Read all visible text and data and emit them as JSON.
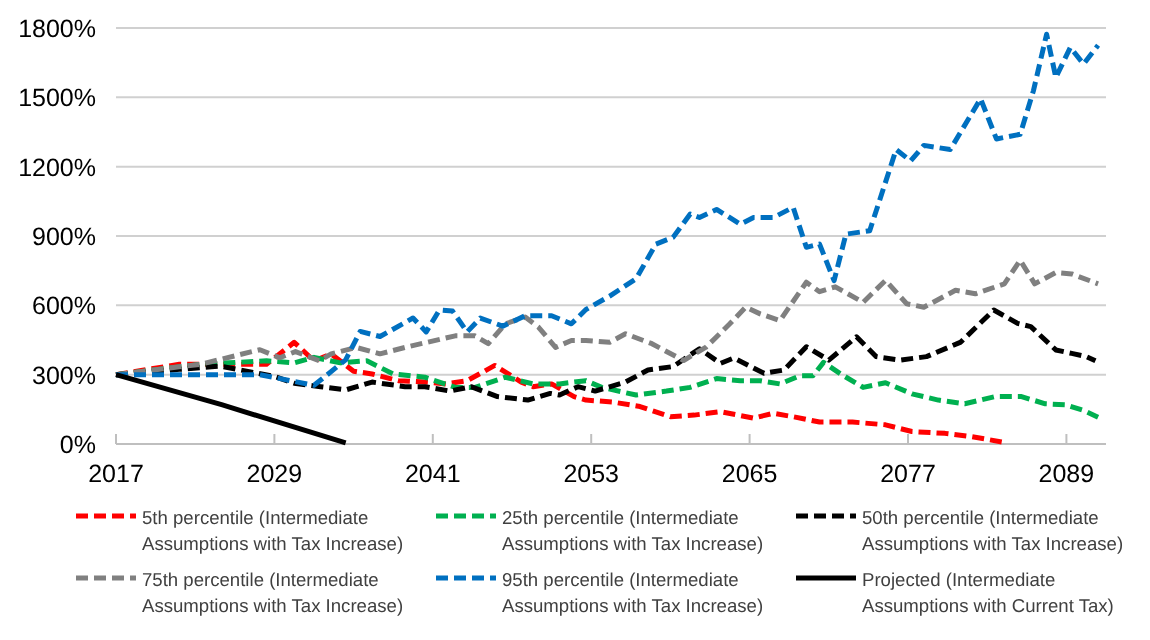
{
  "chart_data": {
    "type": "line",
    "xlim": [
      2017,
      2092
    ],
    "xticks": [
      2017,
      2029,
      2041,
      2053,
      2065,
      2077,
      2089
    ],
    "ylim": [
      0,
      1800
    ],
    "yticks": [
      {
        "value": 0,
        "label": "0%"
      },
      {
        "value": 300,
        "label": "300%"
      },
      {
        "value": 600,
        "label": "600%"
      },
      {
        "value": 900,
        "label": "900%"
      },
      {
        "value": 1200,
        "label": "1200%"
      },
      {
        "value": 1500,
        "label": "1500%"
      },
      {
        "value": 1800,
        "label": "1800%"
      }
    ],
    "grid": "y",
    "legend": "bottom",
    "marker": "none",
    "series": [
      {
        "name": "5th percentile (Intermediate Assumptions with Tax Increase)",
        "color": "#ff0000",
        "line_style": "dashed",
        "x": [
          2017,
          2021.8,
          2028.4,
          2030.5,
          2032,
          2033.3,
          2035,
          2036.4,
          2038.4,
          2040.4,
          2042,
          2043.6,
          2045.7,
          2047.7,
          2048.6,
          2050,
          2051.7,
          2052.6,
          2054.6,
          2056.7,
          2059,
          2060.8,
          2062.8,
          2065.3,
          2066.8,
          2068.3,
          2070.3,
          2072.8,
          2075.3,
          2077.3,
          2079.8,
          2081.8,
          2084.1
        ],
        "values": [
          300,
          345,
          345,
          440,
          360,
          390,
          315,
          303,
          274,
          268,
          260,
          274,
          340,
          268,
          248,
          260,
          205,
          190,
          182,
          162,
          118,
          125,
          140,
          112,
          133,
          118,
          95,
          95,
          83,
          54,
          46,
          32,
          9
        ]
      },
      {
        "name": "25th percentile (Intermediate Assumptions with Tax Increase)",
        "color": "#00b050",
        "line_style": "dashed",
        "x": [
          2017,
          2023.4,
          2028.4,
          2030.5,
          2032,
          2034,
          2036,
          2038,
          2040.4,
          2042.7,
          2044.2,
          2046.5,
          2048.6,
          2050.6,
          2052.6,
          2053.8,
          2056.4,
          2058.7,
          2060.5,
          2062.5,
          2064.3,
          2065.8,
          2067.3,
          2068.8,
          2069.8,
          2070.6,
          2071.9,
          2073.6,
          2075.3,
          2077.3,
          2079.3,
          2081.3,
          2083.6,
          2085.6,
          2087.4,
          2088.9,
          2090.3,
          2091.4
        ],
        "values": [
          300,
          345,
          360,
          351,
          375,
          351,
          360,
          303,
          289,
          245,
          245,
          289,
          260,
          260,
          274,
          245,
          212,
          229,
          245,
          283,
          274,
          274,
          260,
          295,
          295,
          353,
          303,
          245,
          265,
          217,
          190,
          174,
          205,
          205,
          174,
          170,
          145,
          116
        ]
      },
      {
        "name": "50th percentile (Intermediate Assumptions with Tax Increase)",
        "color": "#000000",
        "line_style": "dashed",
        "x": [
          2017,
          2021.8,
          2024.9,
          2029,
          2030.5,
          2032.5,
          2034.4,
          2036.4,
          2038.9,
          2040.4,
          2042.3,
          2043.9,
          2045.9,
          2048.2,
          2049.9,
          2050.6,
          2052,
          2053.3,
          2055.6,
          2057.3,
          2059.2,
          2061.2,
          2062.8,
          2063.8,
          2066.1,
          2067.6,
          2069.3,
          2071,
          2073.1,
          2074.6,
          2076.4,
          2078.4,
          2081,
          2083.5,
          2085.3,
          2086.3,
          2088.2,
          2089.4,
          2090.5,
          2091.2
        ],
        "values": [
          300,
          323,
          337,
          292,
          263,
          248,
          234,
          268,
          248,
          248,
          229,
          248,
          205,
          190,
          219,
          212,
          248,
          229,
          268,
          320,
          335,
          412,
          349,
          372,
          306,
          320,
          421,
          363,
          464,
          378,
          363,
          378,
          441,
          580,
          522,
          508,
          407,
          392,
          378,
          360
        ]
      },
      {
        "name": "75th percentile (Intermediate Assumptions with Tax Increase)",
        "color": "#808080",
        "line_style": "dashed",
        "x": [
          2017,
          2023.4,
          2027.9,
          2029.4,
          2030.6,
          2032.4,
          2033.3,
          2035.2,
          2037,
          2038.9,
          2042.7,
          2044.2,
          2045.2,
          2046.5,
          2048,
          2049,
          2050.3,
          2051.5,
          2052.6,
          2054.4,
          2055.6,
          2057.6,
          2060,
          2061.7,
          2063.5,
          2064.7,
          2065.8,
          2067.3,
          2069.3,
          2070.3,
          2071.5,
          2073.6,
          2075.3,
          2076.9,
          2078.2,
          2080.6,
          2082.1,
          2084.3,
          2085.5,
          2086.6,
          2088.2,
          2089.4,
          2091.4
        ],
        "values": [
          300,
          345,
          408,
          373,
          400,
          360,
          390,
          418,
          390,
          418,
          468,
          468,
          434,
          520,
          549,
          506,
          418,
          448,
          448,
          440,
          477,
          434,
          361,
          419,
          520,
          592,
          563,
          534,
          700,
          659,
          680,
          613,
          708,
          607,
          592,
          665,
          650,
          693,
          795,
          693,
          742,
          736,
          693
        ]
      },
      {
        "name": "95th percentile (Intermediate Assumptions with Tax Increase)",
        "color": "#0070c0",
        "line_style": "dashed",
        "x": [
          2017,
          2027.9,
          2032,
          2034.4,
          2035.5,
          2037,
          2039.5,
          2040.5,
          2041.5,
          2042.5,
          2043.6,
          2044.6,
          2046.3,
          2048,
          2050,
          2051.5,
          2052.6,
          2054.4,
          2056.4,
          2057.9,
          2059.2,
          2060.5,
          2061.2,
          2062.5,
          2064.3,
          2065.3,
          2066.8,
          2068.3,
          2069.3,
          2070.3,
          2071.4,
          2072.3,
          2074.1,
          2076.1,
          2077.2,
          2078.2,
          2080.2,
          2082.5,
          2083.7,
          2085.5,
          2086.5,
          2087.5,
          2088.2,
          2089.3,
          2090.3,
          2091.4
        ],
        "values": [
          300,
          300,
          254,
          364,
          487,
          465,
          545,
          485,
          580,
          575,
          485,
          545,
          510,
          555,
          555,
          520,
          582,
          640,
          715,
          865,
          894,
          995,
          980,
          1015,
          951,
          980,
          980,
          1024,
          851,
          865,
          707,
          908,
          923,
          1274,
          1225,
          1292,
          1274,
          1494,
          1320,
          1340,
          1528,
          1773,
          1586,
          1716,
          1644,
          1725
        ]
      },
      {
        "name": "Projected (Intermediate Assumptions with Current Tax)",
        "color": "#000000",
        "line_style": "solid",
        "x": [
          2017,
          2025,
          2034.4
        ],
        "values": [
          300,
          170,
          5
        ]
      }
    ]
  }
}
